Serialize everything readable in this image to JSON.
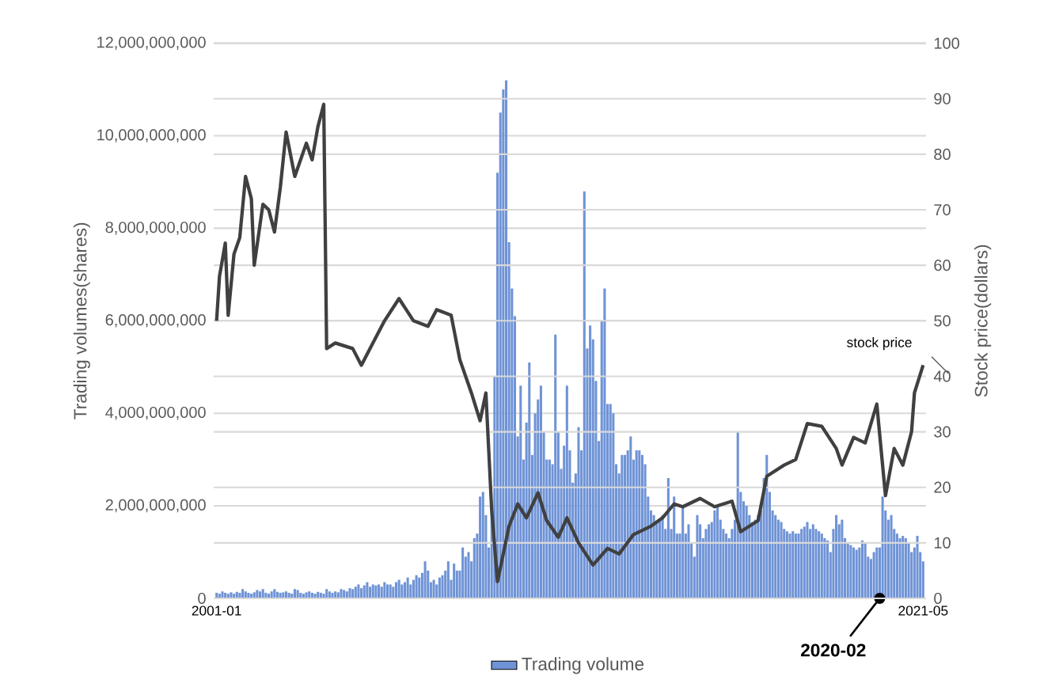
{
  "chart_data": {
    "type": "bar",
    "xlabel": null,
    "ylabel": "Trading volumes(shares)",
    "y2label": "Stock price(dollars)",
    "x": [
      "2001-01",
      "2001-02",
      "2001-03",
      "2001-04",
      "2001-05",
      "2001-06",
      "2001-07",
      "2001-08",
      "2001-09",
      "2001-10",
      "2001-11",
      "2001-12",
      "2002-01",
      "2002-02",
      "2002-03",
      "2002-04",
      "2002-05",
      "2002-06",
      "2002-07",
      "2002-08",
      "2002-09",
      "2002-10",
      "2002-11",
      "2002-12",
      "2003-01",
      "2003-02",
      "2003-03",
      "2003-04",
      "2003-05",
      "2003-06",
      "2003-07",
      "2003-08",
      "2003-09",
      "2003-10",
      "2003-11",
      "2003-12",
      "2004-01",
      "2004-02",
      "2004-03",
      "2004-04",
      "2004-05",
      "2004-06",
      "2004-07",
      "2004-08",
      "2004-09",
      "2004-10",
      "2004-11",
      "2004-12",
      "2005-01",
      "2005-02",
      "2005-03",
      "2005-04",
      "2005-05",
      "2005-06",
      "2005-07",
      "2005-08",
      "2005-09",
      "2005-10",
      "2005-11",
      "2005-12",
      "2006-01",
      "2006-02",
      "2006-03",
      "2006-04",
      "2006-05",
      "2006-06",
      "2006-07",
      "2006-08",
      "2006-09",
      "2006-10",
      "2006-11",
      "2006-12",
      "2007-01",
      "2007-02",
      "2007-03",
      "2007-04",
      "2007-05",
      "2007-06",
      "2007-07",
      "2007-08",
      "2007-09",
      "2007-10",
      "2007-11",
      "2007-12",
      "2008-01",
      "2008-02",
      "2008-03",
      "2008-04",
      "2008-05",
      "2008-06",
      "2008-07",
      "2008-08",
      "2008-09",
      "2008-10",
      "2008-11",
      "2008-12",
      "2009-01",
      "2009-02",
      "2009-03",
      "2009-04",
      "2009-05",
      "2009-06",
      "2009-07",
      "2009-08",
      "2009-09",
      "2009-10",
      "2009-11",
      "2009-12",
      "2010-01",
      "2010-02",
      "2010-03",
      "2010-04",
      "2010-05",
      "2010-06",
      "2010-07",
      "2010-08",
      "2010-09",
      "2010-10",
      "2010-11",
      "2010-12",
      "2011-01",
      "2011-02",
      "2011-03",
      "2011-04",
      "2011-05",
      "2011-06",
      "2011-07",
      "2011-08",
      "2011-09",
      "2011-10",
      "2011-11",
      "2011-12",
      "2012-01",
      "2012-02",
      "2012-03",
      "2012-04",
      "2012-05",
      "2012-06",
      "2012-07",
      "2012-08",
      "2012-09",
      "2012-10",
      "2012-11",
      "2012-12",
      "2013-01",
      "2013-02",
      "2013-03",
      "2013-04",
      "2013-05",
      "2013-06",
      "2013-07",
      "2013-08",
      "2013-09",
      "2013-10",
      "2013-11",
      "2013-12",
      "2014-01",
      "2014-02",
      "2014-03",
      "2014-04",
      "2014-05",
      "2014-06",
      "2014-07",
      "2014-08",
      "2014-09",
      "2014-10",
      "2014-11",
      "2014-12",
      "2015-01",
      "2015-02",
      "2015-03",
      "2015-04",
      "2015-05",
      "2015-06",
      "2015-07",
      "2015-08",
      "2015-09",
      "2015-10",
      "2015-11",
      "2015-12",
      "2016-01",
      "2016-02",
      "2016-03",
      "2016-04",
      "2016-05",
      "2016-06",
      "2016-07",
      "2016-08",
      "2016-09",
      "2016-10",
      "2016-11",
      "2016-12",
      "2017-01",
      "2017-02",
      "2017-03",
      "2017-04",
      "2017-05",
      "2017-06",
      "2017-07",
      "2017-08",
      "2017-09",
      "2017-10",
      "2017-11",
      "2017-12",
      "2018-01",
      "2018-02",
      "2018-03",
      "2018-04",
      "2018-05",
      "2018-06",
      "2018-07",
      "2018-08",
      "2018-09",
      "2018-10",
      "2018-11",
      "2018-12",
      "2019-01",
      "2019-02",
      "2019-03",
      "2019-04",
      "2019-05",
      "2019-06",
      "2019-07",
      "2019-08",
      "2019-09",
      "2019-10",
      "2019-11",
      "2019-12",
      "2020-01",
      "2020-02",
      "2020-03",
      "2020-04",
      "2020-05",
      "2020-06",
      "2020-07",
      "2020-08",
      "2020-09",
      "2020-10",
      "2020-11",
      "2020-12",
      "2021-01",
      "2021-02",
      "2021-03",
      "2021-04",
      "2021-05"
    ],
    "series": [
      {
        "name": "Trading volume",
        "color": "#6f93d6",
        "values": [
          120000000.0,
          100000000.0,
          150000000.0,
          120000000.0,
          100000000.0,
          130000000.0,
          100000000.0,
          140000000.0,
          120000000.0,
          200000000.0,
          150000000.0,
          120000000.0,
          100000000.0,
          130000000.0,
          180000000.0,
          150000000.0,
          200000000.0,
          120000000.0,
          100000000.0,
          150000000.0,
          200000000.0,
          140000000.0,
          120000000.0,
          130000000.0,
          150000000.0,
          120000000.0,
          100000000.0,
          200000000.0,
          180000000.0,
          120000000.0,
          100000000.0,
          130000000.0,
          150000000.0,
          120000000.0,
          100000000.0,
          140000000.0,
          120000000.0,
          100000000.0,
          200000000.0,
          150000000.0,
          120000000.0,
          150000000.0,
          130000000.0,
          200000000.0,
          180000000.0,
          150000000.0,
          220000000.0,
          200000000.0,
          250000000.0,
          300000000.0,
          220000000.0,
          280000000.0,
          350000000.0,
          250000000.0,
          300000000.0,
          280000000.0,
          300000000.0,
          250000000.0,
          350000000.0,
          300000000.0,
          300000000.0,
          250000000.0,
          350000000.0,
          400000000.0,
          300000000.0,
          350000000.0,
          450000000.0,
          300000000.0,
          400000000.0,
          500000000.0,
          450000000.0,
          550000000.0,
          800000000.0,
          600000000.0,
          350000000.0,
          400000000.0,
          300000000.0,
          450000000.0,
          500000000.0,
          600000000.0,
          800000000.0,
          400000000.0,
          750000000.0,
          600000000.0,
          600000000.0,
          1100000000.0,
          900000000.0,
          1000000000.0,
          800000000.0,
          1300000000.0,
          1400000000.0,
          2200000000.0,
          2300000000.0,
          1800000000.0,
          1100000000.0,
          2000000000.0,
          4800000000.0,
          9200000000.0,
          10500000000.0,
          11000000000.0,
          11200000000.0,
          7700000000.0,
          6700000000.0,
          6100000000.0,
          3500000000.0,
          4600000000.0,
          3000000000.0,
          3800000000.0,
          5100000000.0,
          3100000000.0,
          4000000000.0,
          4300000000.0,
          4600000000.0,
          3600000000.0,
          3000000000.0,
          3000000000.0,
          2900000000.0,
          5700000000.0,
          3600000000.0,
          2800000000.0,
          3300000000.0,
          4600000000.0,
          3200000000.0,
          2500000000.0,
          2700000000.0,
          3700000000.0,
          3200000000.0,
          8800000000.0,
          5400000000.0,
          5900000000.0,
          5600000000.0,
          4700000000.0,
          3400000000.0,
          6000000000.0,
          6700000000.0,
          4200000000.0,
          4200000000.0,
          4000000000.0,
          2900000000.0,
          2700000000.0,
          3100000000.0,
          3100000000.0,
          3200000000.0,
          3500000000.0,
          3000000000.0,
          3200000000.0,
          3200000000.0,
          3100000000.0,
          2900000000.0,
          2200000000.0,
          1900000000.0,
          1800000000.0,
          1650000000.0,
          1700000000.0,
          1800000000.0,
          1500000000.0,
          2600000000.0,
          1500000000.0,
          2200000000.0,
          1400000000.0,
          1400000000.0,
          2000000000.0,
          1400000000.0,
          1600000000.0,
          1200000000.0,
          900000000.0,
          1800000000.0,
          1600000000.0,
          1300000000.0,
          1500000000.0,
          1600000000.0,
          1650000000.0,
          1900000000.0,
          2000000000.0,
          1700000000.0,
          1500000000.0,
          1400000000.0,
          1300000000.0,
          1500000000.0,
          1700000000.0,
          3600000000.0,
          2300000000.0,
          2100000000.0,
          2000000000.0,
          1800000000.0,
          1650000000.0,
          1700000000.0,
          1800000000.0,
          1900000000.0,
          2600000000.0,
          3100000000.0,
          2300000000.0,
          1900000000.0,
          1800000000.0,
          1700000000.0,
          1650000000.0,
          1500000000.0,
          1450000000.0,
          1400000000.0,
          1450000000.0,
          1400000000.0,
          1400000000.0,
          1500000000.0,
          1550000000.0,
          1650000000.0,
          1500000000.0,
          1600000000.0,
          1500000000.0,
          1450000000.0,
          1400000000.0,
          1300000000.0,
          1250000000.0,
          1000000000.0,
          1500000000.0,
          1800000000.0,
          1600000000.0,
          1700000000.0,
          1300000000.0,
          1200000000.0,
          1150000000.0,
          1100000000.0,
          1050000000.0,
          1100000000.0,
          1250000000.0,
          1200000000.0,
          900000000.0,
          850000000.0,
          1000000000.0,
          1100000000.0,
          1100000000.0,
          2200000000.0,
          1900000000.0,
          1700000000.0,
          1800000000.0,
          1500000000.0,
          1400000000.0,
          1300000000.0,
          1350000000.0,
          1300000000.0,
          1200000000.0,
          1000000000.0,
          1100000000.0,
          1350000000.0,
          1000000000.0,
          800000000.0
        ]
      },
      {
        "name": "stock price",
        "type": "line",
        "axis": "y2",
        "color": "#404040",
        "x": [
          "2001-01",
          "2001-02",
          "2001-04",
          "2001-05",
          "2001-07",
          "2001-09",
          "2001-11",
          "2002-01",
          "2002-02",
          "2002-05",
          "2002-07",
          "2002-09",
          "2002-11",
          "2003-01",
          "2003-04",
          "2003-06",
          "2003-08",
          "2003-10",
          "2003-12",
          "2004-02",
          "2004-03",
          "2004-06",
          "2004-12",
          "2005-03",
          "2005-07",
          "2005-11",
          "2006-04",
          "2006-09",
          "2007-02",
          "2007-05",
          "2007-10",
          "2008-01",
          "2008-05",
          "2008-08",
          "2008-10",
          "2008-12",
          "2009-02",
          "2009-06",
          "2009-09",
          "2009-12",
          "2010-04",
          "2010-07",
          "2010-11",
          "2011-02",
          "2011-06",
          "2011-11",
          "2012-04",
          "2012-08",
          "2013-01",
          "2013-07",
          "2013-11",
          "2014-03",
          "2014-06",
          "2014-12",
          "2015-05",
          "2015-11",
          "2016-02",
          "2016-08",
          "2016-11",
          "2017-05",
          "2017-09",
          "2018-01",
          "2018-06",
          "2018-11",
          "2019-01",
          "2019-05",
          "2019-09",
          "2020-01",
          "2020-04",
          "2020-07",
          "2020-10",
          "2021-01",
          "2021-02",
          "2021-05"
        ],
        "values": [
          50,
          58,
          64,
          51,
          62,
          65,
          76,
          72,
          60,
          71,
          70,
          66,
          74,
          84,
          76,
          79,
          82,
          79,
          85,
          89,
          45,
          46,
          45,
          42,
          46,
          50,
          54,
          50,
          49,
          52,
          51,
          43,
          37,
          32,
          37,
          16,
          3,
          13,
          17,
          14.5,
          19,
          14,
          11,
          14.5,
          10,
          6,
          9,
          8,
          11.5,
          13,
          14.5,
          17,
          16.5,
          18,
          16.5,
          17.5,
          12,
          14,
          22,
          24,
          25,
          31.5,
          31,
          27,
          24,
          29,
          28,
          35,
          18.5,
          27,
          24,
          30,
          37,
          42
        ]
      }
    ],
    "xlim": [
      "2000-12",
      "2021-06"
    ],
    "xticks": [
      "2001-01",
      "2021-05"
    ],
    "ylim": [
      0,
      12000000000
    ],
    "yticks": [
      0,
      {
        "value": 2000000000,
        "label": "2,000,000,000"
      },
      {
        "value": 4000000000,
        "label": "4,000,000,000"
      },
      {
        "value": 6000000000,
        "label": "6,000,000,000"
      },
      {
        "value": 8000000000,
        "label": "8,000,000,000"
      },
      {
        "value": 10000000000,
        "label": "10,000,000,000"
      },
      {
        "value": 12000000000,
        "label": "12,000,000,000"
      }
    ],
    "y2lim": [
      0,
      100
    ],
    "y2ticks": [
      0,
      10,
      20,
      30,
      40,
      50,
      60,
      70,
      80,
      90,
      100
    ],
    "grid": true,
    "legend": "bottom",
    "annotations": [
      {
        "text": "2020-02",
        "x": "2020-02",
        "y": 0
      }
    ]
  }
}
